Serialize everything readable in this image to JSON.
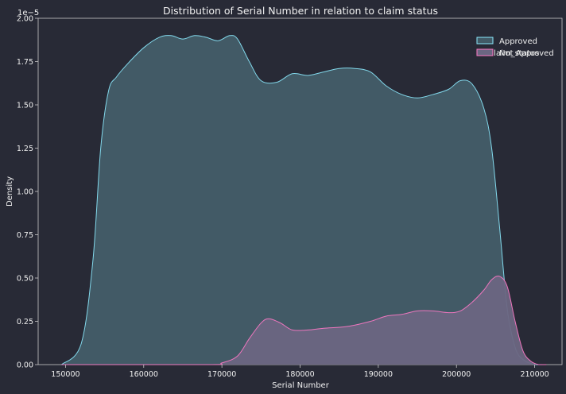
{
  "chart_data": {
    "type": "area",
    "title": "Distribution of Serial Number in relation to claim status",
    "xlabel": "Serial Number",
    "ylabel": "Density",
    "y_scale_note": "1e−5",
    "xlim": [
      146500,
      213500
    ],
    "ylim": [
      0,
      2.0
    ],
    "x_ticks": [
      150000,
      160000,
      170000,
      180000,
      190000,
      200000,
      210000
    ],
    "y_ticks": [
      0.0,
      0.25,
      0.5,
      0.75,
      1.0,
      1.25,
      1.5,
      1.75,
      2.0
    ],
    "y_tick_labels": [
      "0.00",
      "0.25",
      "0.50",
      "0.75",
      "1.00",
      "1.25",
      "1.50",
      "1.75",
      "2.00"
    ],
    "legend": {
      "title": "claim_status",
      "placement": "top-right"
    },
    "series": [
      {
        "name": "Approved",
        "color": "#8be9fd",
        "fill": "#425a66",
        "x": [
          149500,
          152000,
          153500,
          154500,
          155500,
          156500,
          158000,
          160000,
          162000,
          163500,
          165000,
          166500,
          168000,
          169500,
          171000,
          172000,
          173500,
          175000,
          177000,
          179000,
          181000,
          183000,
          185000,
          187000,
          189000,
          191000,
          193000,
          195000,
          197000,
          199000,
          200500,
          202000,
          203500,
          204500,
          205500,
          206500,
          207500,
          208500,
          210000,
          211000
        ],
        "values": [
          0.0,
          0.12,
          0.6,
          1.25,
          1.58,
          1.66,
          1.74,
          1.83,
          1.89,
          1.9,
          1.88,
          1.9,
          1.89,
          1.87,
          1.9,
          1.88,
          1.75,
          1.64,
          1.63,
          1.68,
          1.67,
          1.69,
          1.71,
          1.71,
          1.69,
          1.61,
          1.56,
          1.54,
          1.56,
          1.59,
          1.64,
          1.62,
          1.48,
          1.25,
          0.8,
          0.32,
          0.1,
          0.03,
          0.0,
          0.0
        ]
      },
      {
        "name": "Not Approved",
        "color": "#ff79c6",
        "fill": "#6b6682",
        "x": [
          149500,
          168000,
          170000,
          172000,
          173500,
          175000,
          176000,
          177500,
          179000,
          181000,
          183000,
          186000,
          189000,
          191000,
          193000,
          195000,
          197000,
          199000,
          200500,
          202000,
          203500,
          204500,
          205500,
          206500,
          207500,
          208500,
          209500,
          210500,
          211500
        ],
        "values": [
          0.0,
          0.0,
          0.01,
          0.05,
          0.15,
          0.24,
          0.265,
          0.24,
          0.2,
          0.2,
          0.21,
          0.22,
          0.25,
          0.28,
          0.29,
          0.31,
          0.31,
          0.3,
          0.31,
          0.36,
          0.43,
          0.49,
          0.51,
          0.45,
          0.25,
          0.08,
          0.02,
          0.0,
          0.0
        ]
      }
    ]
  }
}
